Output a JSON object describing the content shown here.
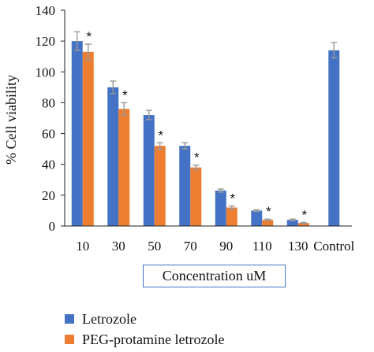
{
  "chart_data": {
    "type": "bar",
    "categories": [
      "10",
      "30",
      "50",
      "70",
      "90",
      "110",
      "130",
      "Control"
    ],
    "series": [
      {
        "name": "Letrozole",
        "color": "#4472c4",
        "values": [
          120,
          90,
          72,
          52,
          23,
          10,
          4,
          114
        ],
        "errors": [
          6,
          4,
          3,
          2,
          1,
          0.5,
          0.5,
          5
        ]
      },
      {
        "name": "PEG-protamine letrozole",
        "color": "#ed7d31",
        "values": [
          113,
          76,
          52,
          38,
          12,
          4,
          2,
          null
        ],
        "errors": [
          5,
          4,
          2,
          1.5,
          1,
          0.5,
          0.3,
          null
        ]
      }
    ],
    "significance": [
      {
        "category": "10",
        "mark": "*"
      },
      {
        "category": "30",
        "mark": "*"
      },
      {
        "category": "50",
        "mark": "*"
      },
      {
        "category": "70",
        "mark": "*"
      },
      {
        "category": "90",
        "mark": "*"
      },
      {
        "category": "110",
        "mark": "*"
      },
      {
        "category": "130",
        "mark": "*"
      }
    ],
    "xlabel": "Concentration uM",
    "ylabel": "% Cell viability",
    "ylim": [
      0,
      140
    ],
    "yticks": [
      0,
      20,
      40,
      60,
      80,
      100,
      120,
      140
    ],
    "grid": false,
    "legend_position": "bottom-left"
  }
}
